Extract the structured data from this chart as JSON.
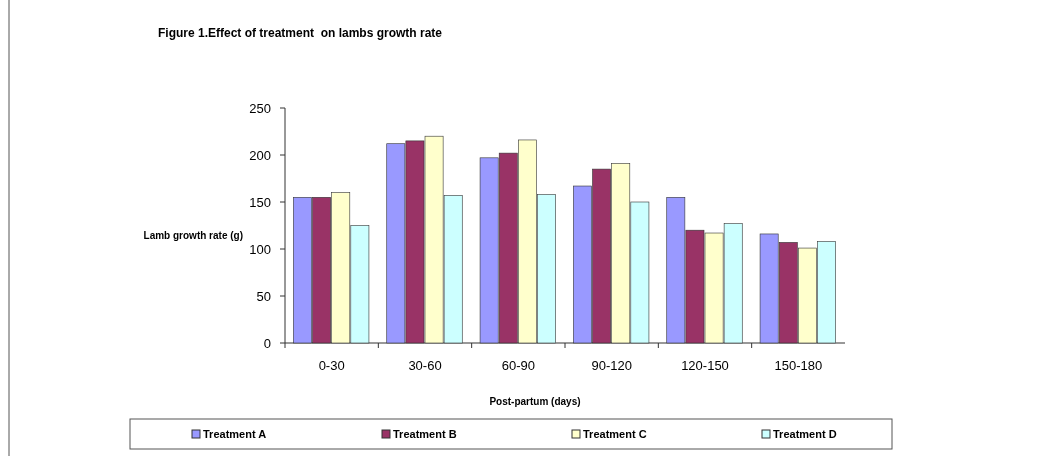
{
  "chart_data": {
    "type": "bar",
    "title": "Figure 1.Effect of treatment  on lambs growth rate",
    "xlabel": "Post-partum (days)",
    "ylabel": "Lamb growth rate (g)",
    "categories": [
      "0-30",
      "30-60",
      "60-90",
      "90-120",
      "120-150",
      "150-180"
    ],
    "series": [
      {
        "name": "Treatment A",
        "color": "#9999ff",
        "values": [
          155,
          212,
          197,
          167,
          155,
          116
        ]
      },
      {
        "name": "Treatment B",
        "color": "#993366",
        "values": [
          155,
          215,
          202,
          185,
          120,
          107
        ]
      },
      {
        "name": "Treatment C",
        "color": "#ffffcc",
        "values": [
          160,
          220,
          216,
          191,
          117,
          101
        ]
      },
      {
        "name": "Treatment D",
        "color": "#ccffff",
        "values": [
          125,
          157,
          158,
          150,
          127,
          108
        ]
      }
    ],
    "ylim": [
      0,
      250
    ],
    "yticks": [
      0,
      50,
      100,
      150,
      200,
      250
    ],
    "grid": false,
    "legend": "bottom"
  }
}
